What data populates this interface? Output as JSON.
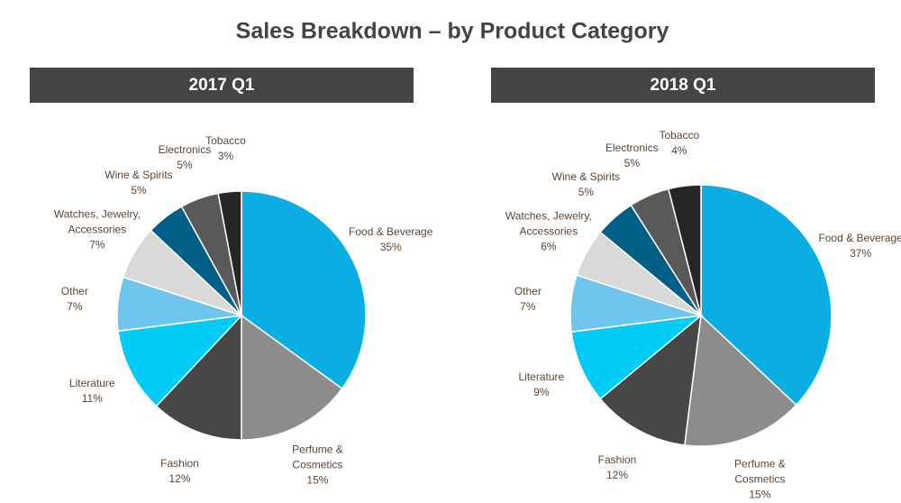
{
  "title": "Sales Breakdown – by Product Category",
  "chart_data": [
    {
      "type": "pie",
      "title": "2017 Q1",
      "categories": [
        "Food & Beverage",
        "Perfume & Cosmetics",
        "Fashion",
        "Literature",
        "Other",
        "Watches, Jewelry, Accessories",
        "Wine & Spirits",
        "Electronics",
        "Tobacco"
      ],
      "values": [
        35,
        15,
        12,
        11,
        7,
        7,
        5,
        5,
        3
      ],
      "value_labels": [
        "35%",
        "15%",
        "12%",
        "11%",
        "7%",
        "7%",
        "5%",
        "5%",
        "3%"
      ],
      "colors": [
        "#0aaee3",
        "#8c8c8c",
        "#474747",
        "#00cdf7",
        "#6ec6ee",
        "#d9d9d9",
        "#005f87",
        "#595959",
        "#262626"
      ]
    },
    {
      "type": "pie",
      "title": "2018 Q1",
      "categories": [
        "Food & Beverage",
        "Perfume & Cosmetics",
        "Fashion",
        "Literature",
        "Other",
        "Watches, Jewelry, Accessories",
        "Wine & Spirits",
        "Electronics",
        "Tobacco"
      ],
      "values": [
        37,
        15,
        12,
        9,
        7,
        6,
        5,
        5,
        4
      ],
      "value_labels": [
        "37%",
        "15%",
        "12%",
        "9%",
        "7%",
        "6%",
        "5%",
        "5%",
        "4%"
      ],
      "colors": [
        "#0aaee3",
        "#8c8c8c",
        "#474747",
        "#00cdf7",
        "#6ec6ee",
        "#d9d9d9",
        "#005f87",
        "#595959",
        "#262626"
      ]
    }
  ]
}
